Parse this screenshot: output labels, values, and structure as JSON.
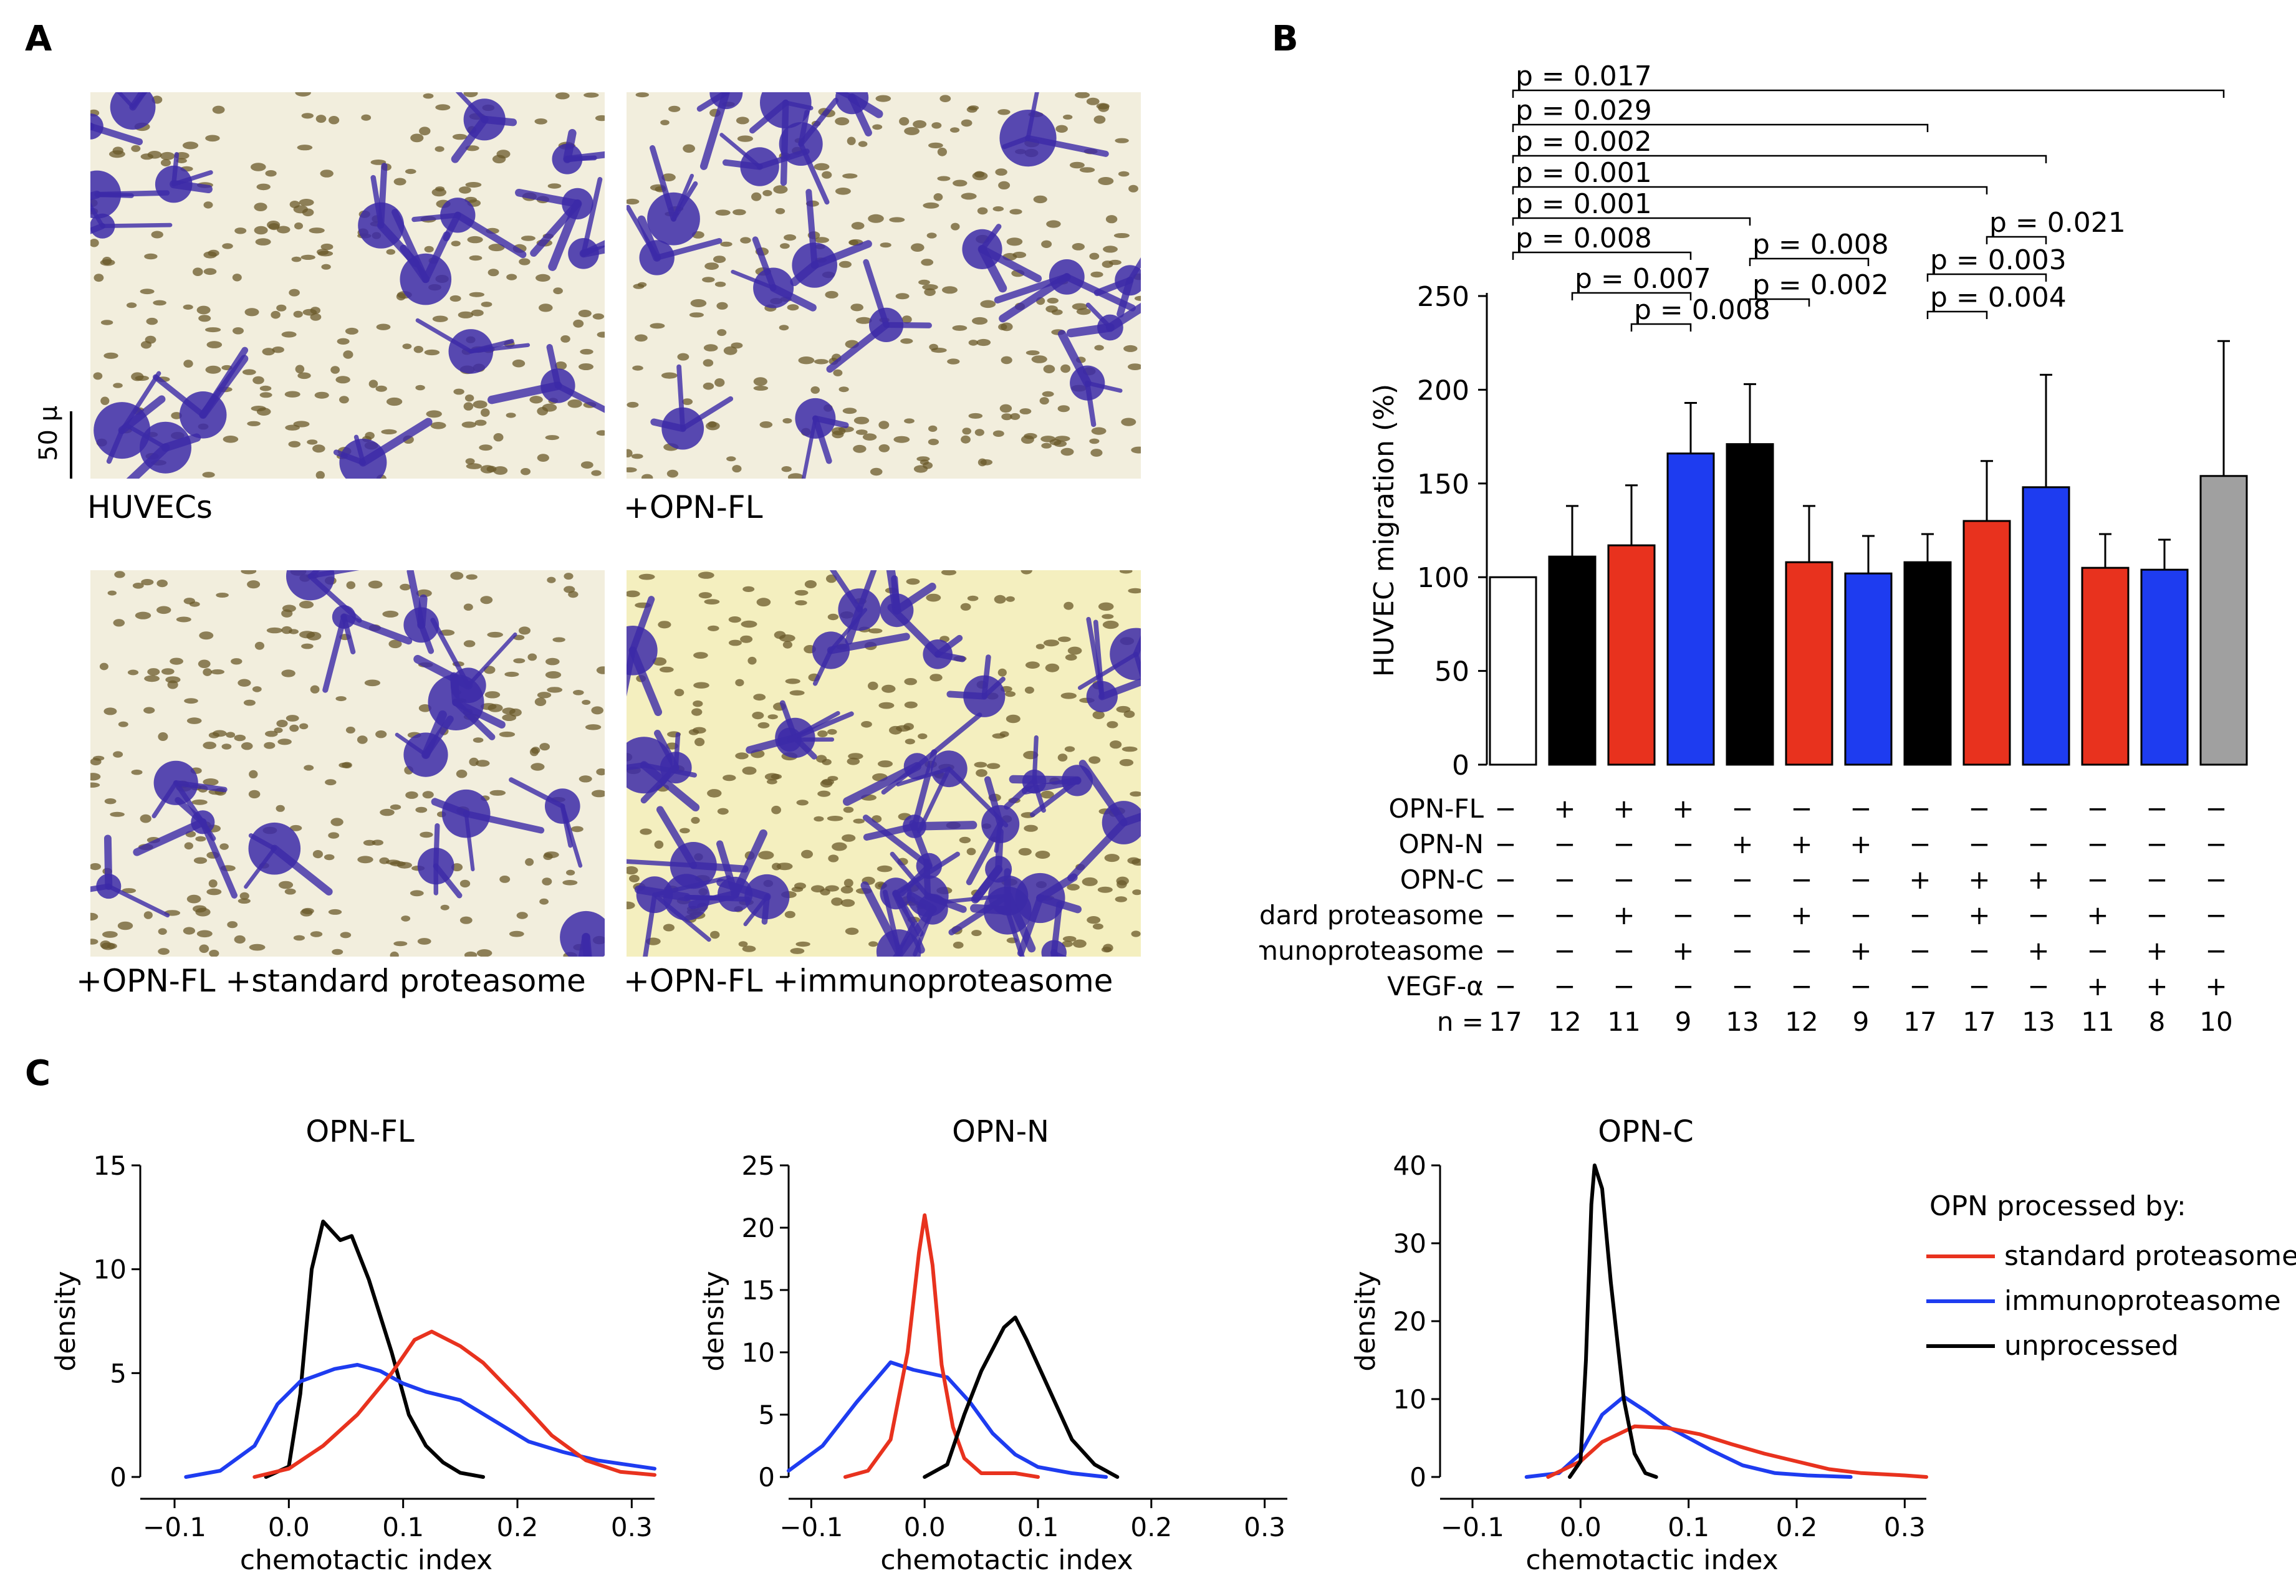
{
  "panels": {
    "a": "A",
    "b": "B",
    "c": "C"
  },
  "panel_a": {
    "scale_bar": "50 μ",
    "images": [
      {
        "caption": "HUVECs",
        "density": "medium"
      },
      {
        "caption": "+OPN-FL",
        "density": "medium"
      },
      {
        "caption": "+OPN-FL +standard proteasome",
        "density": "low"
      },
      {
        "caption": "+OPN-FL +immunoproteasome",
        "density": "high"
      }
    ]
  },
  "colors": {
    "black": "#000000",
    "red": "#e8321e",
    "blue": "#1e3cf0",
    "gray": "#a0a0a0",
    "white": "#ffffff",
    "purple": "#3c2aa8",
    "background": "#f2eedd"
  },
  "chart_data": [
    {
      "type": "bar",
      "id": "B",
      "ylabel": "HUVEC migration (%)",
      "ylim": [
        0,
        250
      ],
      "yticks": [
        0,
        50,
        100,
        150,
        200,
        250
      ],
      "bars": [
        {
          "value": 100,
          "error": 0,
          "color": "white"
        },
        {
          "value": 111,
          "error": 27,
          "color": "black"
        },
        {
          "value": 117,
          "error": 32,
          "color": "red"
        },
        {
          "value": 166,
          "error": 27,
          "color": "blue"
        },
        {
          "value": 171,
          "error": 32,
          "color": "black"
        },
        {
          "value": 108,
          "error": 30,
          "color": "red"
        },
        {
          "value": 102,
          "error": 20,
          "color": "blue"
        },
        {
          "value": 108,
          "error": 15,
          "color": "black"
        },
        {
          "value": 130,
          "error": 32,
          "color": "red"
        },
        {
          "value": 148,
          "error": 60,
          "color": "blue"
        },
        {
          "value": 105,
          "error": 18,
          "color": "red"
        },
        {
          "value": 104,
          "error": 16,
          "color": "blue"
        },
        {
          "value": 154,
          "error": 72,
          "color": "gray"
        }
      ],
      "treatments": [
        {
          "label": "OPN-FL",
          "signs": [
            "−",
            "+",
            "+",
            "+",
            "−",
            "−",
            "−",
            "−",
            "−",
            "−",
            "−",
            "−",
            "−"
          ]
        },
        {
          "label": "OPN-N",
          "signs": [
            "−",
            "−",
            "−",
            "−",
            "+",
            "+",
            "+",
            "−",
            "−",
            "−",
            "−",
            "−",
            "−"
          ]
        },
        {
          "label": "OPN-C",
          "signs": [
            "−",
            "−",
            "−",
            "−",
            "−",
            "−",
            "−",
            "+",
            "+",
            "+",
            "−",
            "−",
            "−"
          ]
        },
        {
          "label": "standard proteasome",
          "signs": [
            "−",
            "−",
            "+",
            "−",
            "−",
            "+",
            "−",
            "−",
            "+",
            "−",
            "+",
            "−",
            "−"
          ]
        },
        {
          "label": "immunoproteasome",
          "signs": [
            "−",
            "−",
            "−",
            "+",
            "−",
            "−",
            "+",
            "−",
            "−",
            "+",
            "−",
            "+",
            "−"
          ]
        },
        {
          "label": "VEGF-α",
          "signs": [
            "−",
            "−",
            "−",
            "−",
            "−",
            "−",
            "−",
            "−",
            "−",
            "−",
            "+",
            "+",
            "+"
          ]
        }
      ],
      "n_label": "n =",
      "n_values": [
        "17",
        "12",
        "11",
        "9",
        "13",
        "12",
        "9",
        "17",
        "17",
        "13",
        "11",
        "8",
        "10"
      ],
      "comparisons": [
        {
          "text": "p = 0.017",
          "from": 0,
          "to": 12
        },
        {
          "text": "p = 0.029",
          "from": 0,
          "to": 7
        },
        {
          "text": "p = 0.002",
          "from": 0,
          "to": 9
        },
        {
          "text": "p = 0.001",
          "from": 0,
          "to": 8
        },
        {
          "text": "p = 0.001",
          "from": 0,
          "to": 4
        },
        {
          "text": "p = 0.008",
          "from": 0,
          "to": 3
        },
        {
          "text": "p = 0.007",
          "from": 1,
          "to": 3
        },
        {
          "text": "p = 0.008",
          "from": 2,
          "to": 3
        },
        {
          "text": "p = 0.008",
          "from": 4,
          "to": 6
        },
        {
          "text": "p = 0.002",
          "from": 4,
          "to": 5
        },
        {
          "text": "p = 0.021",
          "from": 8,
          "to": 9
        },
        {
          "text": "p = 0.003",
          "from": 7,
          "to": 9
        },
        {
          "text": "p = 0.004",
          "from": 7,
          "to": 8
        }
      ]
    },
    {
      "type": "line",
      "id": "C1",
      "title": "OPN-FL",
      "xlabel": "chemotactic index",
      "ylabel": "density",
      "xlim": [
        -0.13,
        0.32
      ],
      "ylim": [
        0,
        15
      ],
      "xticks": [
        -0.1,
        0.0,
        0.1,
        0.2,
        0.3
      ],
      "xtick_labels": [
        "−0.1",
        "0.0",
        "0.1",
        "0.2",
        "0.3"
      ],
      "yticks": [
        0,
        5,
        10,
        15
      ],
      "series": [
        {
          "name": "unprocessed",
          "color": "black",
          "points": [
            [
              -0.02,
              0
            ],
            [
              0.0,
              0.5
            ],
            [
              0.01,
              4
            ],
            [
              0.02,
              10
            ],
            [
              0.03,
              12.3
            ],
            [
              0.045,
              11.4
            ],
            [
              0.055,
              11.6
            ],
            [
              0.07,
              9.5
            ],
            [
              0.09,
              6
            ],
            [
              0.105,
              3
            ],
            [
              0.12,
              1.5
            ],
            [
              0.135,
              0.7
            ],
            [
              0.15,
              0.2
            ],
            [
              0.17,
              0
            ]
          ]
        },
        {
          "name": "immunoproteasome",
          "color": "blue",
          "points": [
            [
              -0.09,
              0
            ],
            [
              -0.06,
              0.3
            ],
            [
              -0.03,
              1.5
            ],
            [
              -0.01,
              3.5
            ],
            [
              0.01,
              4.6
            ],
            [
              0.04,
              5.2
            ],
            [
              0.06,
              5.4
            ],
            [
              0.08,
              5.1
            ],
            [
              0.1,
              4.5
            ],
            [
              0.12,
              4.1
            ],
            [
              0.15,
              3.7
            ],
            [
              0.18,
              2.7
            ],
            [
              0.21,
              1.7
            ],
            [
              0.24,
              1.2
            ],
            [
              0.27,
              0.8
            ],
            [
              0.32,
              0.4
            ]
          ]
        },
        {
          "name": "standard proteasome",
          "color": "red",
          "points": [
            [
              -0.03,
              0
            ],
            [
              0.0,
              0.4
            ],
            [
              0.03,
              1.5
            ],
            [
              0.06,
              3
            ],
            [
              0.09,
              5
            ],
            [
              0.11,
              6.6
            ],
            [
              0.125,
              7
            ],
            [
              0.15,
              6.3
            ],
            [
              0.17,
              5.5
            ],
            [
              0.2,
              3.8
            ],
            [
              0.23,
              2
            ],
            [
              0.26,
              0.8
            ],
            [
              0.29,
              0.25
            ],
            [
              0.32,
              0.1
            ]
          ]
        }
      ]
    },
    {
      "type": "line",
      "id": "C2",
      "title": "OPN-N",
      "xlabel": "chemotactic index",
      "ylabel": "density",
      "xlim": [
        -0.12,
        0.32
      ],
      "ylim": [
        0,
        25
      ],
      "xticks": [
        -0.1,
        0.0,
        0.1,
        0.2,
        0.3
      ],
      "xtick_labels": [
        "−0.1",
        "0.0",
        "0.1",
        "0.2",
        "0.3"
      ],
      "yticks": [
        0,
        5,
        10,
        15,
        20,
        25
      ],
      "series": [
        {
          "name": "immunoproteasome",
          "color": "blue",
          "points": [
            [
              -0.12,
              0.5
            ],
            [
              -0.09,
              2.5
            ],
            [
              -0.06,
              6
            ],
            [
              -0.03,
              9.2
            ],
            [
              -0.01,
              8.6
            ],
            [
              0.02,
              8
            ],
            [
              0.04,
              6
            ],
            [
              0.06,
              3.5
            ],
            [
              0.08,
              1.8
            ],
            [
              0.1,
              0.8
            ],
            [
              0.13,
              0.3
            ],
            [
              0.16,
              0
            ]
          ]
        },
        {
          "name": "standard proteasome",
          "color": "red",
          "points": [
            [
              -0.07,
              0
            ],
            [
              -0.05,
              0.5
            ],
            [
              -0.03,
              3
            ],
            [
              -0.015,
              10
            ],
            [
              -0.005,
              18
            ],
            [
              0.0,
              21
            ],
            [
              0.007,
              17
            ],
            [
              0.015,
              9
            ],
            [
              0.025,
              4
            ],
            [
              0.035,
              1.5
            ],
            [
              0.05,
              0.3
            ],
            [
              0.08,
              0.3
            ],
            [
              0.1,
              0
            ]
          ]
        },
        {
          "name": "unprocessed",
          "color": "black",
          "points": [
            [
              0.0,
              0
            ],
            [
              0.02,
              1
            ],
            [
              0.035,
              5
            ],
            [
              0.05,
              8.5
            ],
            [
              0.07,
              12
            ],
            [
              0.08,
              12.8
            ],
            [
              0.09,
              11
            ],
            [
              0.11,
              7
            ],
            [
              0.13,
              3
            ],
            [
              0.15,
              1
            ],
            [
              0.17,
              0
            ]
          ]
        }
      ]
    },
    {
      "type": "line",
      "id": "C3",
      "title": "OPN-C",
      "xlabel": "chemotactic index",
      "ylabel": "density",
      "xlim": [
        -0.13,
        0.32
      ],
      "ylim": [
        0,
        40
      ],
      "xticks": [
        -0.1,
        0.0,
        0.1,
        0.2,
        0.3
      ],
      "xtick_labels": [
        "−0.1",
        "0.0",
        "0.1",
        "0.2",
        "0.3"
      ],
      "yticks": [
        0,
        10,
        20,
        30,
        40
      ],
      "series": [
        {
          "name": "immunoproteasome",
          "color": "blue",
          "points": [
            [
              -0.05,
              0
            ],
            [
              -0.02,
              0.5
            ],
            [
              0.0,
              3
            ],
            [
              0.02,
              8
            ],
            [
              0.04,
              10.3
            ],
            [
              0.06,
              8.5
            ],
            [
              0.08,
              6.5
            ],
            [
              0.1,
              5
            ],
            [
              0.12,
              3.5
            ],
            [
              0.15,
              1.5
            ],
            [
              0.18,
              0.5
            ],
            [
              0.21,
              0.2
            ],
            [
              0.25,
              0
            ]
          ]
        },
        {
          "name": "standard proteasome",
          "color": "red",
          "points": [
            [
              -0.03,
              0
            ],
            [
              0.0,
              2
            ],
            [
              0.02,
              4.5
            ],
            [
              0.05,
              6.5
            ],
            [
              0.08,
              6.3
            ],
            [
              0.11,
              5.5
            ],
            [
              0.14,
              4.2
            ],
            [
              0.17,
              3
            ],
            [
              0.2,
              2
            ],
            [
              0.23,
              1
            ],
            [
              0.26,
              0.5
            ],
            [
              0.3,
              0.2
            ],
            [
              0.32,
              0
            ]
          ]
        },
        {
          "name": "unprocessed",
          "color": "black",
          "points": [
            [
              -0.01,
              0
            ],
            [
              0.0,
              2
            ],
            [
              0.005,
              15
            ],
            [
              0.01,
              35
            ],
            [
              0.013,
              40
            ],
            [
              0.02,
              37
            ],
            [
              0.028,
              25
            ],
            [
              0.04,
              10
            ],
            [
              0.05,
              3
            ],
            [
              0.06,
              0.5
            ],
            [
              0.07,
              0
            ]
          ]
        }
      ]
    }
  ],
  "legend": {
    "title": "OPN processed by:",
    "items": [
      {
        "label": "standard proteasome",
        "color": "red"
      },
      {
        "label": "immunoproteasome",
        "color": "blue"
      },
      {
        "label": "unprocessed",
        "color": "black"
      }
    ]
  }
}
